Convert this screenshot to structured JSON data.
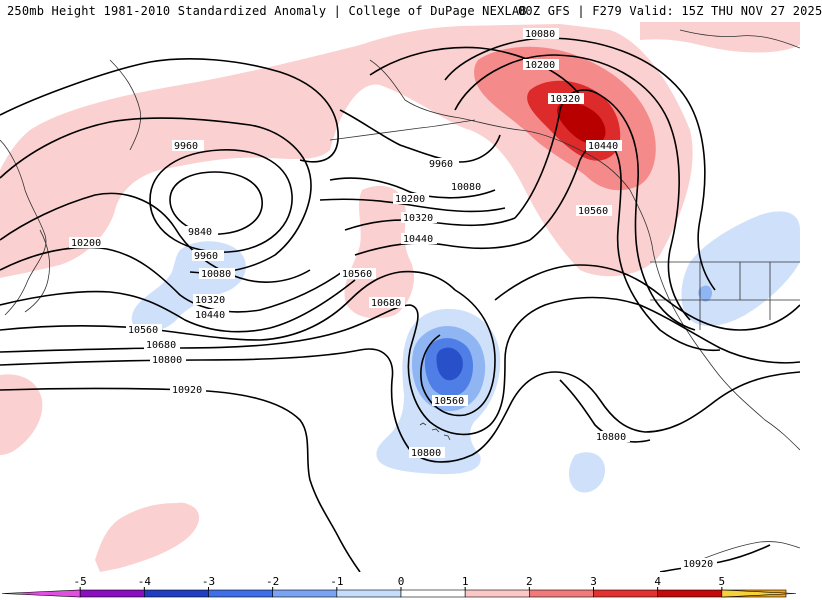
{
  "header": {
    "title": "250mb Height 1981-2010 Standardized Anomaly | College of DuPage NEXLAB",
    "run_info": "00Z GFS | F279 Valid: 15Z THU NOV 27 2025"
  },
  "contour_labels": {
    "l9960a": "9960",
    "l9960b": "9960",
    "l9960c": "9960",
    "l9840": "9840",
    "l10080a": "10080",
    "l10080b": "10080",
    "l10080c": "10080",
    "l10200a": "10200",
    "l10200b": "10200",
    "l10200c": "10200",
    "l10320a": "10320",
    "l10320b": "10320",
    "l10320c": "10320",
    "l10440a": "10440",
    "l10440b": "10440",
    "l10440c": "10440",
    "l10560a": "10560",
    "l10560b": "10560",
    "l10560c": "10560",
    "l10560d": "10560",
    "l10680a": "10680",
    "l10680b": "10680",
    "l10800a": "10800",
    "l10800b": "10800",
    "l10800c": "10800",
    "l10920a": "10920",
    "l10920b": "10920"
  },
  "colorbar": {
    "ticks": [
      "-5",
      "-4",
      "-3",
      "-2",
      "-1",
      "0",
      "1",
      "2",
      "3",
      "4",
      "5"
    ],
    "colors": [
      "#e04fe0",
      "#8a0fc0",
      "#1f3fc0",
      "#3f6fe8",
      "#7aa4f2",
      "#c6dcfb",
      "#ffffff",
      "#fbc8c8",
      "#f27a7a",
      "#e33030",
      "#c40a0a",
      "#f5a016",
      "#f5d23a"
    ]
  },
  "anomaly_colors": {
    "neg1": "#cfe1fa",
    "neg2": "#8fb5f2",
    "neg3": "#4f7fe6",
    "neg4": "#2850c8",
    "pos1": "#fbd0d0",
    "pos2": "#f58a8a",
    "pos3": "#dd2a2a",
    "pos4": "#b80000"
  }
}
